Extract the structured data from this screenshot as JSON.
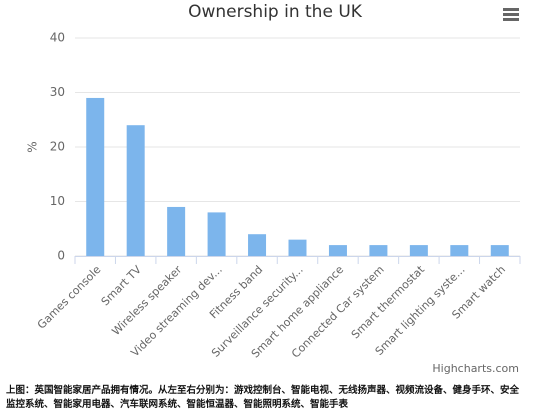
{
  "chart_data": {
    "type": "bar",
    "title": "Ownership in the UK",
    "y_label": "%",
    "categories": [
      "Games console",
      "Smart TV",
      "Wireless speaker",
      "Video streaming dev...",
      "Fitness band",
      "Surveillance security...",
      "Smart home appliance",
      "Connected Car system",
      "Smart thermostat",
      "Smart lighting syste...",
      "Smart watch"
    ],
    "values": [
      29,
      24,
      9,
      8,
      4,
      3,
      2,
      2,
      2,
      2,
      2
    ],
    "color": "#7cb5ec",
    "ylim": [
      0,
      40
    ],
    "yticks": [
      0,
      10,
      20,
      30,
      40
    ],
    "grid": true,
    "credits": "Highcharts.com"
  },
  "caption": "上图：英国智能家居产品拥有情况。从左至右分别为：游戏控制台、智能电视、无线扬声器、视频流设备、健身手环、安全监控系统、智能家用电器、汽车联网系统、智能恒温器、智能照明系统、智能手表"
}
